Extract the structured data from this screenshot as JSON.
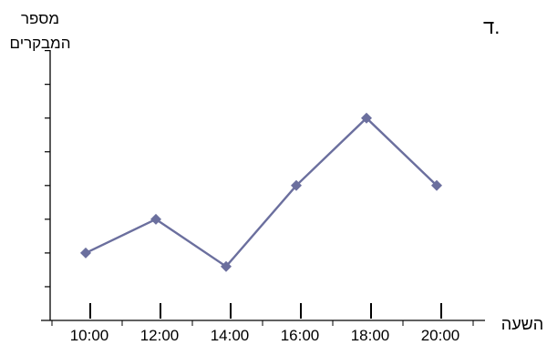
{
  "chart_data": {
    "type": "line",
    "title": "ד.",
    "ylabel_lines": [
      "מספר",
      "המבקרים"
    ],
    "xlabel": "השעה",
    "categories": [
      "10:00",
      "12:00",
      "14:00",
      "16:00",
      "18:00",
      "20:00"
    ],
    "series": [
      {
        "values": [
          2,
          3,
          1.6,
          4,
          6,
          4
        ]
      }
    ],
    "ylim": [
      0,
      8
    ],
    "yticks_count": 8,
    "tick_labels_shown": false,
    "grid": false,
    "line_color": "#6b6f9e",
    "marker": "diamond"
  }
}
